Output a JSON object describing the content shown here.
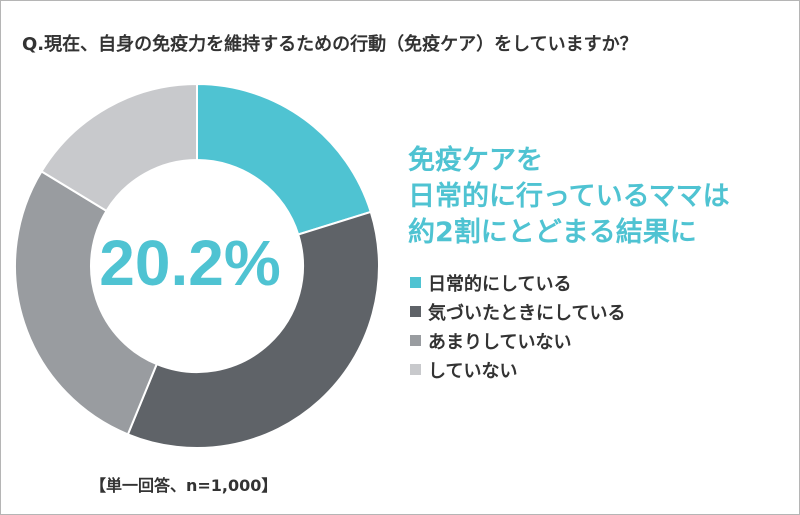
{
  "question": "Q.現在、自身の免疫力を維持するための行動（免疫ケア）をしていますか？",
  "headline_lines": [
    "免疫ケアを",
    "日常的に行っているママは",
    "約2割にとどまる結果に"
  ],
  "note": "【単一回答、n=1,000】",
  "chart_data": {
    "type": "pie",
    "donut": true,
    "center_label": "20.2%",
    "categories": [
      "日常的にしている",
      "気づいたときにしている",
      "あまりしていない",
      "していない"
    ],
    "values": [
      20.2,
      36.0,
      27.5,
      16.3
    ],
    "unit": "%",
    "colors": [
      "#4fc3d2",
      "#5f6368",
      "#999ca0",
      "#c8c9cc"
    ],
    "legend": "right"
  }
}
